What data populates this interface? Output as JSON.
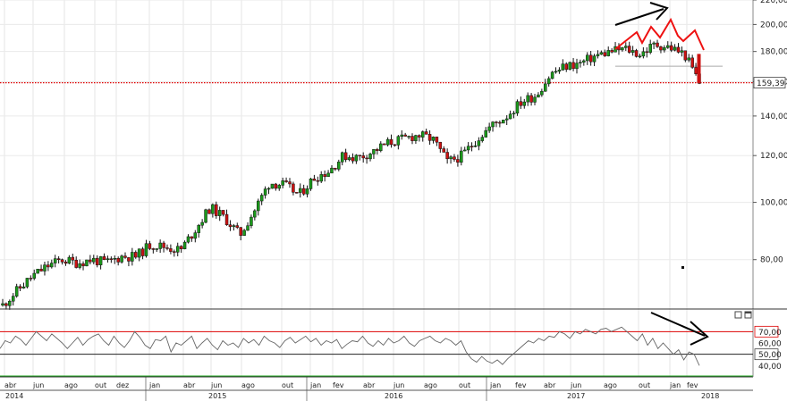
{
  "chart_data": [
    {
      "type": "candlestick",
      "title": "",
      "y_axis": {
        "position": "right",
        "scale": "log",
        "ylim": [
          66,
          220
        ],
        "ticks": [
          "220,00",
          "200,00",
          "180,00",
          "160,00",
          "140,00",
          "120,00",
          "100,00",
          "80,00"
        ],
        "tick_values": [
          220,
          200,
          180,
          160,
          140,
          120,
          100,
          80
        ]
      },
      "x_axis": {
        "months": [
          "abr",
          "jun",
          "ago",
          "out",
          "dez",
          "jan",
          "abr",
          "jun",
          "ago",
          "out",
          "jan",
          "fev",
          "abr",
          "jun",
          "ago",
          "out",
          "jan",
          "fev",
          "abr",
          "jun",
          "ago",
          "out",
          "jan",
          "fev"
        ],
        "years": [
          "2014",
          "2015",
          "2016",
          "2017",
          "2018"
        ]
      },
      "grid": true,
      "last_price": {
        "value": 159.39,
        "label": "159,39",
        "line_color": "#dd0000"
      },
      "support_level": 170,
      "annotations": [
        {
          "kind": "arrow",
          "color": "#000000",
          "direction": "up",
          "note": ""
        },
        {
          "kind": "zigzag",
          "color": "#ee1111",
          "note": ""
        }
      ],
      "weekly_close_series": [
        {
          "x": "2014-04",
          "close": 67
        },
        {
          "x": "2014-05",
          "close": 71
        },
        {
          "x": "2014-06",
          "close": 75
        },
        {
          "x": "2014-07",
          "close": 78
        },
        {
          "x": "2014-08",
          "close": 80
        },
        {
          "x": "2014-09",
          "close": 79
        },
        {
          "x": "2014-10",
          "close": 80
        },
        {
          "x": "2014-11",
          "close": 79
        },
        {
          "x": "2014-12",
          "close": 81
        },
        {
          "x": "2015-01",
          "close": 81
        },
        {
          "x": "2015-02",
          "close": 85
        },
        {
          "x": "2015-03",
          "close": 84
        },
        {
          "x": "2015-04",
          "close": 83
        },
        {
          "x": "2015-05",
          "close": 90
        },
        {
          "x": "2015-06",
          "close": 98
        },
        {
          "x": "2015-07",
          "close": 94
        },
        {
          "x": "2015-08",
          "close": 88
        },
        {
          "x": "2015-09",
          "close": 97
        },
        {
          "x": "2015-10",
          "close": 108
        },
        {
          "x": "2015-11",
          "close": 107
        },
        {
          "x": "2015-12",
          "close": 103
        },
        {
          "x": "2016-01",
          "close": 110
        },
        {
          "x": "2016-02",
          "close": 113
        },
        {
          "x": "2016-03",
          "close": 120
        },
        {
          "x": "2016-04",
          "close": 119
        },
        {
          "x": "2016-05",
          "close": 122
        },
        {
          "x": "2016-06",
          "close": 126
        },
        {
          "x": "2016-07",
          "close": 128
        },
        {
          "x": "2016-08",
          "close": 130
        },
        {
          "x": "2016-09",
          "close": 128
        },
        {
          "x": "2016-10",
          "close": 117
        },
        {
          "x": "2016-11",
          "close": 120
        },
        {
          "x": "2016-12",
          "close": 128
        },
        {
          "x": "2017-01",
          "close": 135
        },
        {
          "x": "2017-02",
          "close": 140
        },
        {
          "x": "2017-03",
          "close": 148
        },
        {
          "x": "2017-04",
          "close": 152
        },
        {
          "x": "2017-05",
          "close": 165
        },
        {
          "x": "2017-06",
          "close": 170
        },
        {
          "x": "2017-07",
          "close": 172
        },
        {
          "x": "2017-08",
          "close": 177
        },
        {
          "x": "2017-09",
          "close": 180
        },
        {
          "x": "2017-10",
          "close": 182
        },
        {
          "x": "2017-11",
          "close": 178
        },
        {
          "x": "2017-12",
          "close": 185
        },
        {
          "x": "2018-01",
          "close": 183
        },
        {
          "x": "2018-02",
          "close": 178
        },
        {
          "x": "2018-02b",
          "close": 159.39
        }
      ]
    },
    {
      "type": "line",
      "title": "",
      "y_axis": {
        "position": "right",
        "ylim": [
          30,
          90
        ],
        "ticks": [
          "70,00",
          "60,00",
          "50,00",
          "40,00"
        ],
        "tick_values": [
          70,
          60,
          50,
          40
        ],
        "boxed_ticks": [
          "70,00",
          "50,00"
        ]
      },
      "reference_lines": [
        {
          "value": 70,
          "color": "#dd0000"
        },
        {
          "value": 50,
          "color": "#222222"
        }
      ],
      "annotations": [
        {
          "kind": "arrow",
          "color": "#000000",
          "direction": "down",
          "note": ""
        }
      ],
      "series": [
        {
          "values": [
            55,
            62,
            60,
            66,
            63,
            58,
            64,
            70,
            66,
            62,
            68,
            64,
            60,
            55,
            60,
            65,
            58,
            63,
            66,
            68,
            62,
            58,
            66,
            60,
            56,
            62,
            70,
            65,
            58,
            55,
            63,
            62,
            66,
            52,
            60,
            58,
            62,
            66,
            55,
            60,
            64,
            58,
            54,
            62,
            58,
            60,
            56,
            64,
            60,
            63,
            58,
            66,
            62,
            60,
            56,
            62,
            65,
            60,
            63,
            66,
            61,
            64,
            58,
            62,
            60,
            63,
            55,
            59,
            62,
            61,
            66,
            60,
            57,
            62,
            58,
            64,
            60,
            62,
            66,
            60,
            57,
            62,
            64,
            66,
            62,
            60,
            64,
            62,
            58,
            62,
            52,
            46,
            43,
            48,
            44,
            42,
            45,
            41,
            46,
            50,
            54,
            58,
            62,
            60,
            64,
            62,
            66,
            65,
            70,
            68,
            64,
            70,
            68,
            72,
            70,
            68,
            72,
            73,
            70,
            72,
            74,
            70,
            66,
            62,
            68,
            58,
            64,
            55,
            60,
            55,
            50,
            54,
            45,
            52,
            50,
            40
          ]
        }
      ]
    }
  ]
}
